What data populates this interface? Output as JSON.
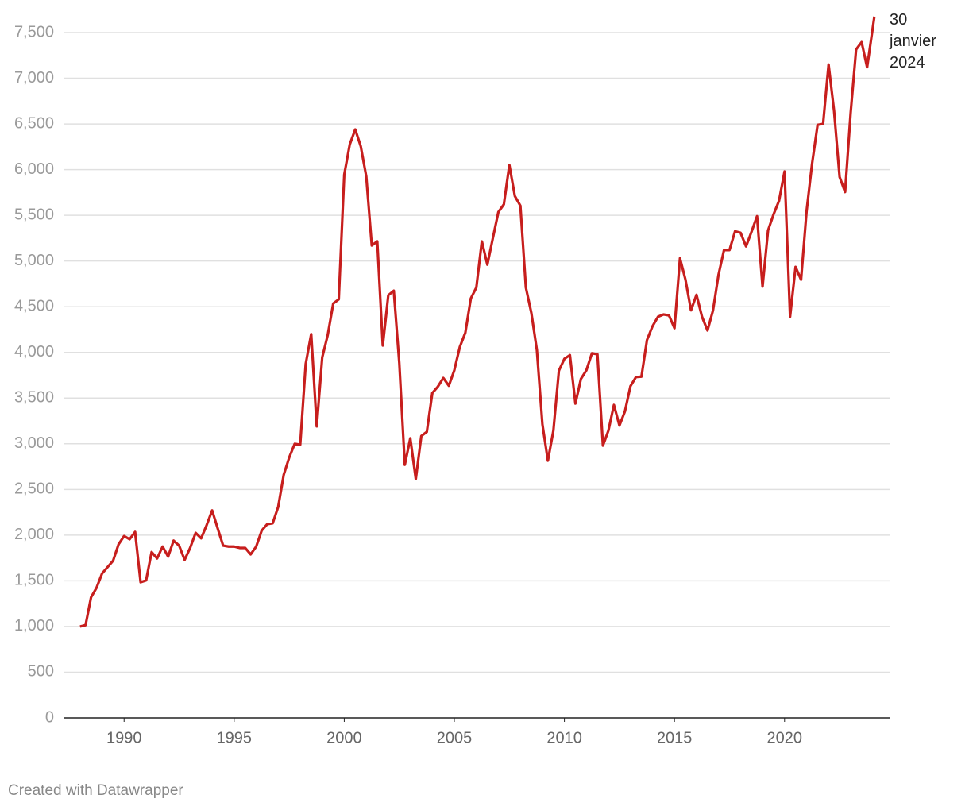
{
  "chart_data": {
    "type": "line",
    "annotation": "30 janvier 2024",
    "source": "Created with Datawrapper",
    "color": "#c71e1d",
    "grid": true,
    "x": [
      1988.0,
      1988.25,
      1988.5,
      1988.75,
      1989.0,
      1989.25,
      1989.5,
      1989.75,
      1990.0,
      1990.25,
      1990.5,
      1990.75,
      1991.0,
      1991.25,
      1991.5,
      1991.75,
      1992.0,
      1992.25,
      1992.5,
      1992.75,
      1993.0,
      1993.25,
      1993.5,
      1993.75,
      1994.0,
      1994.25,
      1994.5,
      1994.75,
      1995.0,
      1995.25,
      1995.5,
      1995.75,
      1996.0,
      1996.25,
      1996.5,
      1996.75,
      1997.0,
      1997.25,
      1997.5,
      1997.75,
      1998.0,
      1998.25,
      1998.5,
      1998.75,
      1999.0,
      1999.25,
      1999.5,
      1999.75,
      2000.0,
      2000.25,
      2000.5,
      2000.75,
      2001.0,
      2001.25,
      2001.5,
      2001.75,
      2002.0,
      2002.25,
      2002.5,
      2002.75,
      2003.0,
      2003.25,
      2003.5,
      2003.75,
      2004.0,
      2004.25,
      2004.5,
      2004.75,
      2005.0,
      2005.25,
      2005.5,
      2005.75,
      2006.0,
      2006.25,
      2006.5,
      2006.75,
      2007.0,
      2007.25,
      2007.5,
      2007.75,
      2008.0,
      2008.25,
      2008.5,
      2008.75,
      2009.0,
      2009.25,
      2009.5,
      2009.75,
      2010.0,
      2010.25,
      2010.5,
      2010.75,
      2011.0,
      2011.25,
      2011.5,
      2011.75,
      2012.0,
      2012.25,
      2012.5,
      2012.75,
      2013.0,
      2013.25,
      2013.5,
      2013.75,
      2014.0,
      2014.25,
      2014.5,
      2014.75,
      2015.0,
      2015.25,
      2015.5,
      2015.75,
      2016.0,
      2016.25,
      2016.5,
      2016.75,
      2017.0,
      2017.25,
      2017.5,
      2017.75,
      2018.0,
      2018.25,
      2018.5,
      2018.75,
      2019.0,
      2019.25,
      2019.5,
      2019.75,
      2020.0,
      2020.25,
      2020.5,
      2020.75,
      2021.0,
      2021.25,
      2021.5,
      2021.75,
      2022.0,
      2022.25,
      2022.5,
      2022.75,
      2023.0,
      2023.25,
      2023.5,
      2023.75,
      2024.08
    ],
    "values": [
      1000,
      1015,
      1320,
      1425,
      1580,
      1650,
      1720,
      1900,
      1990,
      1955,
      2035,
      1485,
      1505,
      1815,
      1745,
      1875,
      1765,
      1940,
      1885,
      1730,
      1860,
      2025,
      1965,
      2110,
      2270,
      2075,
      1885,
      1875,
      1875,
      1860,
      1860,
      1790,
      1875,
      2050,
      2120,
      2130,
      2310,
      2660,
      2850,
      3000,
      2990,
      3875,
      4200,
      3190,
      3945,
      4190,
      4535,
      4580,
      5945,
      6275,
      6440,
      6255,
      5925,
      5170,
      5215,
      4075,
      4625,
      4675,
      3885,
      2770,
      3060,
      2615,
      3085,
      3130,
      3555,
      3625,
      3720,
      3635,
      3805,
      4060,
      4215,
      4590,
      4710,
      5215,
      4960,
      5250,
      5535,
      5620,
      6050,
      5710,
      5605,
      4710,
      4430,
      4025,
      3215,
      2815,
      3145,
      3800,
      3930,
      3970,
      3440,
      3710,
      3805,
      3990,
      3980,
      2980,
      3145,
      3425,
      3200,
      3355,
      3630,
      3730,
      3735,
      4135,
      4285,
      4390,
      4415,
      4405,
      4265,
      5030,
      4795,
      4460,
      4630,
      4390,
      4240,
      4460,
      4850,
      5120,
      5120,
      5325,
      5310,
      5160,
      5320,
      5490,
      4720,
      5335,
      5510,
      5660,
      5980,
      4390,
      4935,
      4795,
      5545,
      6065,
      6490,
      6500,
      7150,
      6640,
      5920,
      5755,
      6615,
      7315,
      7395,
      7120,
      7675
    ],
    "xlim": [
      1987.25,
      2024.77
    ],
    "xticks": [
      1990,
      1995,
      2000,
      2005,
      2010,
      2015,
      2020
    ],
    "ylim": [
      0,
      7500
    ],
    "yticks": [
      0,
      500,
      {
        "value": 1000,
        "label": "1,000"
      },
      {
        "value": 1500,
        "label": "1,500"
      },
      {
        "value": 2000,
        "label": "2,000"
      },
      {
        "value": 2500,
        "label": "2,500"
      },
      {
        "value": 3000,
        "label": "3,000"
      },
      {
        "value": 3500,
        "label": "3,500"
      },
      {
        "value": 4000,
        "label": "4,000"
      },
      {
        "value": 4500,
        "label": "4,500"
      },
      {
        "value": 5000,
        "label": "5,000"
      },
      {
        "value": 5500,
        "label": "5,500"
      },
      {
        "value": 6000,
        "label": "6,000"
      },
      {
        "value": 6500,
        "label": "6,500"
      },
      {
        "value": 7000,
        "label": "7,000"
      },
      {
        "value": 7500,
        "label": "7,500"
      }
    ]
  }
}
